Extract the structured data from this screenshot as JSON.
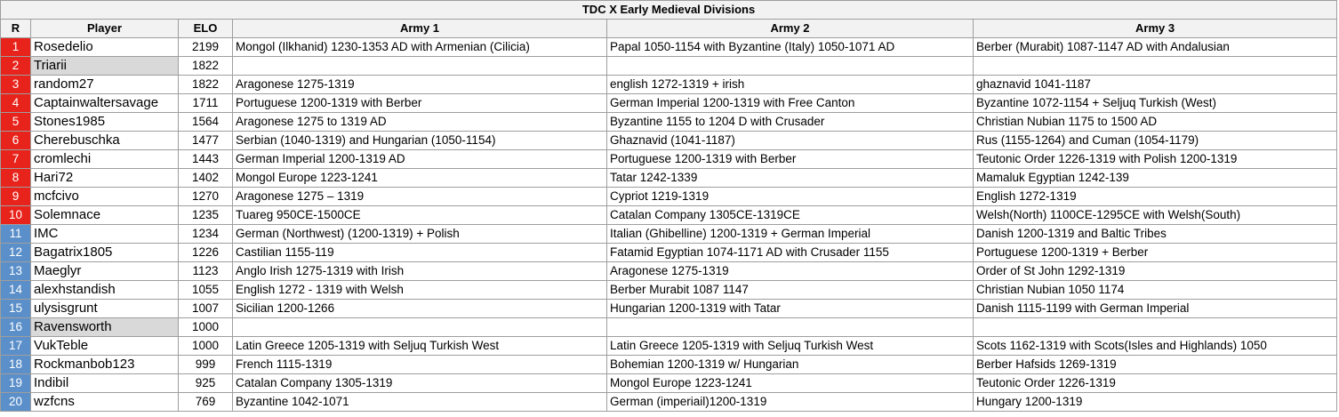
{
  "title": "TDC X Early Medieval Divisions",
  "columns": [
    "R",
    "Player",
    "ELO",
    "Army 1",
    "Army 2",
    "Army 3"
  ],
  "rows": [
    {
      "rank": 1,
      "rank_color": "#e8231b",
      "player": "Rosedelio",
      "elo": 2199,
      "armies": [
        "Mongol (Ilkhanid) 1230-1353 AD with Armenian (Cilicia)",
        "Papal 1050-1154 with Byzantine (Italy) 1050-1071 AD",
        "Berber (Murabit) 1087-1147 AD with Andalusian"
      ]
    },
    {
      "rank": 2,
      "rank_color": "#e8231b",
      "player": "Triarii",
      "elo": 1822,
      "armies": []
    },
    {
      "rank": 3,
      "rank_color": "#e8231b",
      "player": "random27",
      "elo": 1822,
      "armies": [
        "Aragonese 1275-1319",
        "english 1272-1319 + irish",
        "ghaznavid 1041-1187"
      ]
    },
    {
      "rank": 4,
      "rank_color": "#e8231b",
      "player": "Captainwaltersavage",
      "elo": 1711,
      "armies": [
        "Portuguese 1200-1319 with Berber",
        "German Imperial 1200-1319 with Free Canton",
        "Byzantine 1072-1154 + Seljuq Turkish (West)"
      ]
    },
    {
      "rank": 5,
      "rank_color": "#e8231b",
      "player": "Stones1985",
      "elo": 1564,
      "armies": [
        "Aragonese 1275 to 1319 AD",
        "Byzantine 1155 to 1204 D with Crusader",
        "Christian Nubian 1175 to 1500 AD"
      ]
    },
    {
      "rank": 6,
      "rank_color": "#e8231b",
      "player": "Cherebuschka",
      "elo": 1477,
      "armies": [
        "Serbian (1040-1319) and Hungarian (1050-1154)",
        "Ghaznavid (1041-1187)",
        "Rus (1155-1264) and Cuman (1054-1179)"
      ]
    },
    {
      "rank": 7,
      "rank_color": "#e8231b",
      "player": "cromlechi",
      "elo": 1443,
      "armies": [
        "German Imperial 1200-1319 AD",
        "Portuguese 1200-1319 with Berber",
        "Teutonic Order 1226-1319 with Polish 1200-1319"
      ]
    },
    {
      "rank": 8,
      "rank_color": "#e8231b",
      "player": "Hari72",
      "elo": 1402,
      "armies": [
        "Mongol Europe 1223-1241",
        "Tatar 1242-1339",
        "Mamaluk Egyptian 1242-139"
      ]
    },
    {
      "rank": 9,
      "rank_color": "#e8231b",
      "player": "mcfcivo",
      "elo": 1270,
      "armies": [
        "Aragonese 1275 – 1319",
        "Cypriot 1219-1319",
        "English 1272-1319"
      ]
    },
    {
      "rank": 10,
      "rank_color": "#e8231b",
      "player": "Solemnace",
      "elo": 1235,
      "armies": [
        "Tuareg 950CE-1500CE",
        "Catalan Company 1305CE-1319CE",
        "Welsh(North) 1100CE-1295CE with Welsh(South)"
      ]
    },
    {
      "rank": 11,
      "rank_color": "#5b8fc9",
      "player": "IMC",
      "elo": 1234,
      "armies": [
        "German (Northwest) (1200-1319) + Polish",
        "Italian (Ghibelline) 1200-1319 + German Imperial",
        "Danish 1200-1319 and Baltic Tribes"
      ]
    },
    {
      "rank": 12,
      "rank_color": "#5b8fc9",
      "player": "Bagatrix1805",
      "elo": 1226,
      "armies": [
        "Castilian 1155-119",
        "Fatamid Egyptian 1074-1171 AD with Crusader 1155",
        "Portuguese 1200-1319 + Berber"
      ]
    },
    {
      "rank": 13,
      "rank_color": "#5b8fc9",
      "player": "Maeglyr",
      "elo": 1123,
      "armies": [
        "Anglo Irish 1275-1319 with Irish",
        "Aragonese 1275-1319",
        "Order of St John 1292-1319"
      ]
    },
    {
      "rank": 14,
      "rank_color": "#5b8fc9",
      "player": "alexhstandish",
      "elo": 1055,
      "armies": [
        "English 1272 - 1319 with Welsh",
        "Berber Murabit 1087 1147",
        "Christian Nubian 1050 1174"
      ]
    },
    {
      "rank": 15,
      "rank_color": "#5b8fc9",
      "player": "ulysisgrunt",
      "elo": 1007,
      "armies": [
        "Sicilian 1200-1266",
        "Hungarian 1200-1319 with Tatar",
        "Danish 1115-1199 with German Imperial"
      ]
    },
    {
      "rank": 16,
      "rank_color": "#5b8fc9",
      "player": "Ravensworth",
      "elo": 1000,
      "armies": []
    },
    {
      "rank": 17,
      "rank_color": "#5b8fc9",
      "player": "VukTeble",
      "elo": 1000,
      "armies": [
        "Latin Greece 1205-1319 with Seljuq Turkish West",
        "Latin Greece 1205-1319 with Seljuq Turkish West",
        "Scots 1162-1319 with Scots(Isles and Highlands) 1050"
      ]
    },
    {
      "rank": 18,
      "rank_color": "#5b8fc9",
      "player": "Rockmanbob123",
      "elo": 999,
      "armies": [
        "French 1115-1319",
        "Bohemian 1200-1319 w/ Hungarian",
        "Berber Hafsids 1269-1319"
      ]
    },
    {
      "rank": 19,
      "rank_color": "#5b8fc9",
      "player": "Indibil",
      "elo": 925,
      "armies": [
        "Catalan Company 1305-1319",
        "Mongol Europe 1223-1241",
        "Teutonic Order 1226-1319"
      ]
    },
    {
      "rank": 20,
      "rank_color": "#5b8fc9",
      "player": "wzfcns",
      "elo": 769,
      "armies": [
        "Byzantine 1042-1071",
        "German (imperiail)1200-1319",
        "Hungary 1200-1319"
      ]
    }
  ]
}
